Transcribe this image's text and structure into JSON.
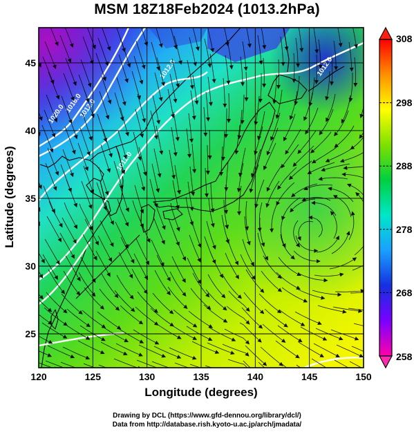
{
  "title": "MSM 18Z18Feb2024 (1013.2hPa)",
  "xlabel": "Longitude (degrees)",
  "ylabel": "Latitude  (degrees)",
  "credits": {
    "line1": "Drawing by DCL (https://www.gfd-dennou.org/library/dcl/)",
    "line2": "Data from http://database.rish.kyoto-u.ac.jp/arch/jmadata/"
  },
  "map": {
    "lon_range": [
      120,
      150
    ],
    "lat_range": [
      22.5,
      47.6
    ],
    "lon_ticks": [
      "120",
      "125",
      "130",
      "135",
      "140",
      "145",
      "150"
    ],
    "lat_ticks": [
      "25",
      "30",
      "35",
      "40",
      "45"
    ],
    "isobar_labels": [
      {
        "text": "1020.0",
        "lon": 121.2,
        "lat": 40.5
      },
      {
        "text": "1016.0",
        "lon": 122.8,
        "lat": 41.3
      },
      {
        "text": "1012.0",
        "lon": 124.1,
        "lat": 40.9
      },
      {
        "text": "1012.0",
        "lon": 131.5,
        "lat": 43.8
      },
      {
        "text": "1012.0",
        "lon": 127.5,
        "lat": 37.0
      },
      {
        "text": "1012.0",
        "lon": 146.0,
        "lat": 44.0
      }
    ]
  },
  "colorbar": {
    "min": 258,
    "max": 308,
    "ticks": [
      "308",
      "298",
      "288",
      "278",
      "268",
      "258"
    ],
    "stops": [
      "#ff00aa",
      "#7a00ff",
      "#1530e0",
      "#1aa0ff",
      "#00e6c8",
      "#00d040",
      "#7ee000",
      "#ffff00",
      "#ff9000",
      "#ff0000"
    ]
  }
}
